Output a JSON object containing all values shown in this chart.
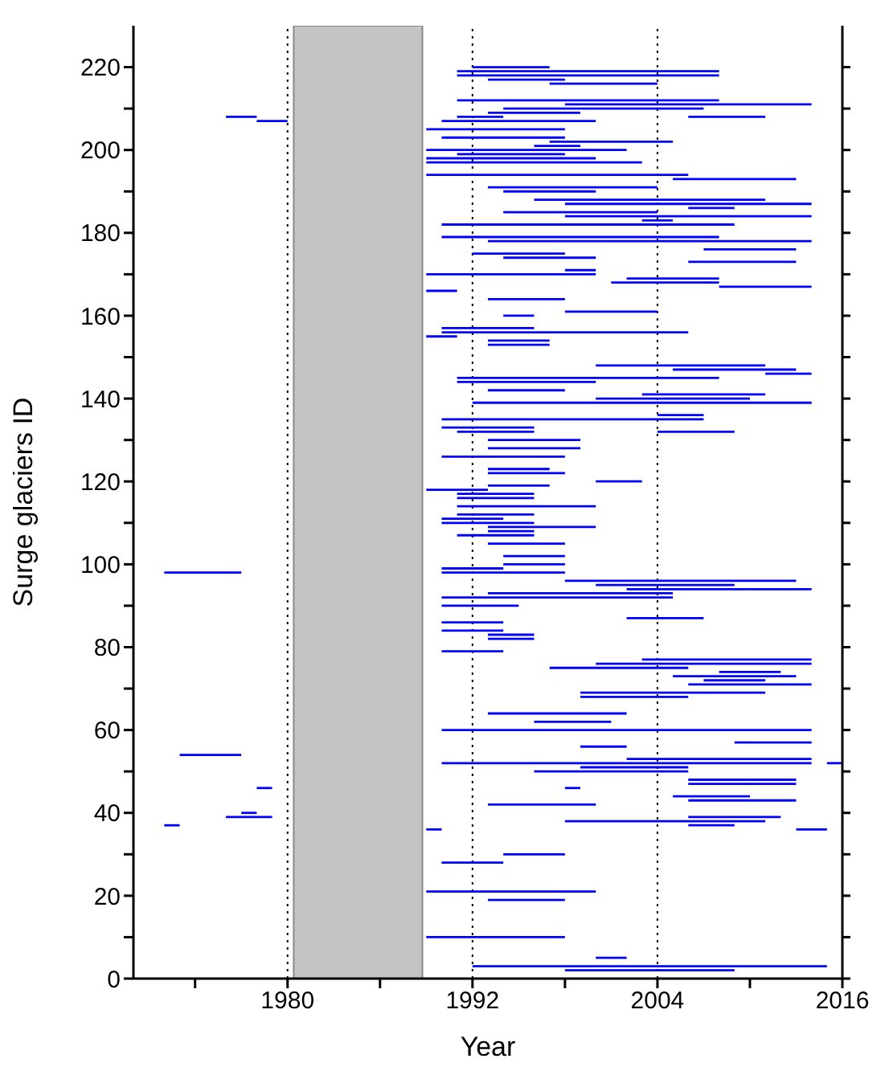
{
  "chart_data": {
    "type": "line",
    "xlabel": "Year",
    "ylabel": "Surge glaciers ID",
    "color": "#0000ff",
    "grid": false,
    "line_style": "solid",
    "xlim": [
      1970,
      2016
    ],
    "xticks": [
      {
        "value": 1974,
        "label": null
      },
      1980,
      {
        "value": 1986,
        "label": null
      },
      1992,
      {
        "value": 1998,
        "label": null
      },
      2004,
      {
        "value": 2010,
        "label": null
      },
      2016
    ],
    "ylim": [
      0,
      230
    ],
    "yticks": [
      0,
      {
        "value": 10,
        "label": null
      },
      20,
      {
        "value": 30,
        "label": null
      },
      40,
      {
        "value": 50,
        "label": null
      },
      60,
      {
        "value": 70,
        "label": null
      },
      80,
      {
        "value": 90,
        "label": null
      },
      100,
      {
        "value": 110,
        "label": null
      },
      120,
      {
        "value": 130,
        "label": null
      },
      140,
      {
        "value": 150,
        "label": null
      },
      160,
      {
        "value": 170,
        "label": null
      },
      180,
      {
        "value": 190,
        "label": null
      },
      200,
      {
        "value": 210,
        "label": null
      },
      220
    ],
    "ref_lines": [
      {
        "axis": "x",
        "value": 1980,
        "color": "#000000",
        "line_style": "dotted"
      },
      {
        "axis": "x",
        "value": 1992,
        "color": "#000000",
        "line_style": "dotted"
      },
      {
        "axis": "x",
        "value": 2004,
        "color": "#000000",
        "line_style": "dotted"
      }
    ],
    "bands": [
      {
        "axis": "x",
        "from": 1980.4,
        "to": 1988.75,
        "color": "#c4c4c4"
      }
    ],
    "series": [
      {
        "x": [
          1992,
          1997
        ],
        "values": [
          220,
          220
        ]
      },
      {
        "x": [
          1991,
          2008
        ],
        "values": [
          219,
          219
        ]
      },
      {
        "x": [
          1991,
          2008
        ],
        "values": [
          218,
          218
        ]
      },
      {
        "x": [
          1993,
          1998
        ],
        "values": [
          217,
          217
        ]
      },
      {
        "x": [
          1997,
          2004
        ],
        "values": [
          216,
          216
        ]
      },
      {
        "x": [
          1991,
          2008
        ],
        "values": [
          212,
          212
        ]
      },
      {
        "x": [
          1998,
          2014
        ],
        "values": [
          211,
          211
        ]
      },
      {
        "x": [
          1994,
          2007
        ],
        "values": [
          210,
          210
        ]
      },
      {
        "x": [
          1993,
          1999
        ],
        "values": [
          209,
          209
        ]
      },
      {
        "x": [
          1976,
          1978
        ],
        "values": [
          208,
          208
        ]
      },
      {
        "x": [
          1991,
          1994
        ],
        "values": [
          208,
          208
        ]
      },
      {
        "x": [
          2006,
          2011
        ],
        "values": [
          208,
          208
        ]
      },
      {
        "x": [
          1978,
          1980
        ],
        "values": [
          207,
          207
        ]
      },
      {
        "x": [
          1990,
          2000
        ],
        "values": [
          207,
          207
        ]
      },
      {
        "x": [
          1989,
          1998
        ],
        "values": [
          205,
          205
        ]
      },
      {
        "x": [
          1990,
          1998
        ],
        "values": [
          203,
          203
        ]
      },
      {
        "x": [
          1997,
          2005
        ],
        "values": [
          202,
          202
        ]
      },
      {
        "x": [
          1996,
          1999
        ],
        "values": [
          201,
          201
        ]
      },
      {
        "x": [
          1989,
          2002
        ],
        "values": [
          200,
          200
        ]
      },
      {
        "x": [
          1991,
          1998
        ],
        "values": [
          199,
          199
        ]
      },
      {
        "x": [
          1989,
          2000
        ],
        "values": [
          198,
          198
        ]
      },
      {
        "x": [
          1989,
          2003
        ],
        "values": [
          197,
          197
        ]
      },
      {
        "x": [
          1989,
          2006
        ],
        "values": [
          194,
          194
        ]
      },
      {
        "x": [
          2005,
          2013
        ],
        "values": [
          193,
          193
        ]
      },
      {
        "x": [
          1993,
          2004
        ],
        "values": [
          191,
          191
        ]
      },
      {
        "x": [
          1994,
          2000
        ],
        "values": [
          190,
          190
        ]
      },
      {
        "x": [
          1996,
          2011
        ],
        "values": [
          188,
          188
        ]
      },
      {
        "x": [
          1998,
          2014
        ],
        "values": [
          187,
          187
        ]
      },
      {
        "x": [
          2006,
          2009
        ],
        "values": [
          186,
          186
        ]
      },
      {
        "x": [
          1994,
          2004
        ],
        "values": [
          185,
          185
        ]
      },
      {
        "x": [
          1998,
          2014
        ],
        "values": [
          184,
          184
        ]
      },
      {
        "x": [
          2003,
          2005
        ],
        "values": [
          183,
          183
        ]
      },
      {
        "x": [
          1990,
          2009
        ],
        "values": [
          182,
          182
        ]
      },
      {
        "x": [
          1990,
          2008
        ],
        "values": [
          179,
          179
        ]
      },
      {
        "x": [
          1993,
          2014
        ],
        "values": [
          178,
          178
        ]
      },
      {
        "x": [
          2007,
          2013
        ],
        "values": [
          176,
          176
        ]
      },
      {
        "x": [
          1992,
          1998
        ],
        "values": [
          175,
          175
        ]
      },
      {
        "x": [
          1994,
          2000
        ],
        "values": [
          174,
          174
        ]
      },
      {
        "x": [
          2006,
          2013
        ],
        "values": [
          173,
          173
        ]
      },
      {
        "x": [
          1998,
          2000
        ],
        "values": [
          171,
          171
        ]
      },
      {
        "x": [
          1989,
          2000
        ],
        "values": [
          170,
          170
        ]
      },
      {
        "x": [
          2002,
          2008
        ],
        "values": [
          169,
          169
        ]
      },
      {
        "x": [
          2001,
          2008
        ],
        "values": [
          168,
          168
        ]
      },
      {
        "x": [
          2008,
          2014
        ],
        "values": [
          167,
          167
        ]
      },
      {
        "x": [
          1989,
          1991
        ],
        "values": [
          166,
          166
        ]
      },
      {
        "x": [
          1993,
          1998
        ],
        "values": [
          164,
          164
        ]
      },
      {
        "x": [
          1998,
          2004
        ],
        "values": [
          161,
          161
        ]
      },
      {
        "x": [
          1994,
          1996
        ],
        "values": [
          160,
          160
        ]
      },
      {
        "x": [
          1990,
          1996
        ],
        "values": [
          157,
          157
        ]
      },
      {
        "x": [
          1990,
          2006
        ],
        "values": [
          156,
          156
        ]
      },
      {
        "x": [
          1989,
          1991
        ],
        "values": [
          155,
          155
        ]
      },
      {
        "x": [
          1993,
          1997
        ],
        "values": [
          154,
          154
        ]
      },
      {
        "x": [
          1993,
          1997
        ],
        "values": [
          153,
          153
        ]
      },
      {
        "x": [
          2000,
          2011
        ],
        "values": [
          148,
          148
        ]
      },
      {
        "x": [
          2005,
          2013
        ],
        "values": [
          147,
          147
        ]
      },
      {
        "x": [
          2011,
          2014
        ],
        "values": [
          146,
          146
        ]
      },
      {
        "x": [
          1991,
          2008
        ],
        "values": [
          145,
          145
        ]
      },
      {
        "x": [
          1991,
          2000
        ],
        "values": [
          144,
          144
        ]
      },
      {
        "x": [
          1993,
          1998
        ],
        "values": [
          142,
          142
        ]
      },
      {
        "x": [
          2003,
          2011
        ],
        "values": [
          141,
          141
        ]
      },
      {
        "x": [
          2000,
          2010
        ],
        "values": [
          140,
          140
        ]
      },
      {
        "x": [
          1992,
          2014
        ],
        "values": [
          139,
          139
        ]
      },
      {
        "x": [
          2004,
          2007
        ],
        "values": [
          136,
          136
        ]
      },
      {
        "x": [
          1990,
          2007
        ],
        "values": [
          135,
          135
        ]
      },
      {
        "x": [
          1990,
          1996
        ],
        "values": [
          133,
          133
        ]
      },
      {
        "x": [
          1991,
          1996
        ],
        "values": [
          132,
          132
        ]
      },
      {
        "x": [
          2004,
          2009
        ],
        "values": [
          132,
          132
        ]
      },
      {
        "x": [
          1993,
          1999
        ],
        "values": [
          130,
          130
        ]
      },
      {
        "x": [
          1993,
          1999
        ],
        "values": [
          128,
          128
        ]
      },
      {
        "x": [
          1990,
          1998
        ],
        "values": [
          126,
          126
        ]
      },
      {
        "x": [
          1993,
          1997
        ],
        "values": [
          123,
          123
        ]
      },
      {
        "x": [
          1993,
          1998
        ],
        "values": [
          122,
          122
        ]
      },
      {
        "x": [
          2000,
          2003
        ],
        "values": [
          120,
          120
        ]
      },
      {
        "x": [
          1993,
          1997
        ],
        "values": [
          119,
          119
        ]
      },
      {
        "x": [
          1989,
          1993
        ],
        "values": [
          118,
          118
        ]
      },
      {
        "x": [
          1991,
          1996
        ],
        "values": [
          117,
          117
        ]
      },
      {
        "x": [
          1991,
          1996
        ],
        "values": [
          116,
          116
        ]
      },
      {
        "x": [
          1991,
          2000
        ],
        "values": [
          114,
          114
        ]
      },
      {
        "x": [
          1991,
          1996
        ],
        "values": [
          112,
          112
        ]
      },
      {
        "x": [
          1990,
          1994
        ],
        "values": [
          111,
          111
        ]
      },
      {
        "x": [
          1990,
          1996
        ],
        "values": [
          110,
          110
        ]
      },
      {
        "x": [
          1993,
          2000
        ],
        "values": [
          109,
          109
        ]
      },
      {
        "x": [
          1993,
          1996
        ],
        "values": [
          108,
          108
        ]
      },
      {
        "x": [
          1991,
          1996
        ],
        "values": [
          107,
          107
        ]
      },
      {
        "x": [
          1993,
          1998
        ],
        "values": [
          105,
          105
        ]
      },
      {
        "x": [
          1994,
          1998
        ],
        "values": [
          102,
          102
        ]
      },
      {
        "x": [
          1994,
          1998
        ],
        "values": [
          100,
          100
        ]
      },
      {
        "x": [
          1990,
          1994
        ],
        "values": [
          99,
          99
        ]
      },
      {
        "x": [
          1972,
          1977
        ],
        "values": [
          98,
          98
        ]
      },
      {
        "x": [
          1990,
          1998
        ],
        "values": [
          98,
          98
        ]
      },
      {
        "x": [
          1998,
          2013
        ],
        "values": [
          96,
          96
        ]
      },
      {
        "x": [
          2000,
          2009
        ],
        "values": [
          95,
          95
        ]
      },
      {
        "x": [
          2002,
          2014
        ],
        "values": [
          94,
          94
        ]
      },
      {
        "x": [
          1993,
          2005
        ],
        "values": [
          93,
          93
        ]
      },
      {
        "x": [
          1990,
          2005
        ],
        "values": [
          92,
          92
        ]
      },
      {
        "x": [
          1990,
          1995
        ],
        "values": [
          90,
          90
        ]
      },
      {
        "x": [
          2002,
          2007
        ],
        "values": [
          87,
          87
        ]
      },
      {
        "x": [
          1990,
          1994
        ],
        "values": [
          86,
          86
        ]
      },
      {
        "x": [
          1990,
          1994
        ],
        "values": [
          84,
          84
        ]
      },
      {
        "x": [
          1993,
          1996
        ],
        "values": [
          83,
          83
        ]
      },
      {
        "x": [
          1993,
          1996
        ],
        "values": [
          82,
          82
        ]
      },
      {
        "x": [
          1990,
          1994
        ],
        "values": [
          79,
          79
        ]
      },
      {
        "x": [
          2003,
          2014
        ],
        "values": [
          77,
          77
        ]
      },
      {
        "x": [
          2000,
          2014
        ],
        "values": [
          76,
          76
        ]
      },
      {
        "x": [
          1997,
          2006
        ],
        "values": [
          75,
          75
        ]
      },
      {
        "x": [
          2008,
          2012
        ],
        "values": [
          74,
          74
        ]
      },
      {
        "x": [
          2005,
          2013
        ],
        "values": [
          73,
          73
        ]
      },
      {
        "x": [
          2007,
          2011
        ],
        "values": [
          72,
          72
        ]
      },
      {
        "x": [
          2006,
          2014
        ],
        "values": [
          71,
          71
        ]
      },
      {
        "x": [
          1999,
          2011
        ],
        "values": [
          69,
          69
        ]
      },
      {
        "x": [
          1999,
          2006
        ],
        "values": [
          68,
          68
        ]
      },
      {
        "x": [
          1993,
          2002
        ],
        "values": [
          64,
          64
        ]
      },
      {
        "x": [
          1996,
          2001
        ],
        "values": [
          62,
          62
        ]
      },
      {
        "x": [
          1990,
          2014
        ],
        "values": [
          60,
          60
        ]
      },
      {
        "x": [
          2009,
          2014
        ],
        "values": [
          57,
          57
        ]
      },
      {
        "x": [
          1999,
          2002
        ],
        "values": [
          56,
          56
        ]
      },
      {
        "x": [
          1973,
          1977
        ],
        "values": [
          54,
          54
        ]
      },
      {
        "x": [
          2002,
          2014
        ],
        "values": [
          53,
          53
        ]
      },
      {
        "x": [
          1990,
          2014
        ],
        "values": [
          52,
          52
        ]
      },
      {
        "x": [
          2015,
          2016
        ],
        "values": [
          52,
          52
        ]
      },
      {
        "x": [
          1999,
          2006
        ],
        "values": [
          51,
          51
        ]
      },
      {
        "x": [
          1996,
          2006
        ],
        "values": [
          50,
          50
        ]
      },
      {
        "x": [
          2006,
          2013
        ],
        "values": [
          48,
          48
        ]
      },
      {
        "x": [
          2006,
          2013
        ],
        "values": [
          47,
          47
        ]
      },
      {
        "x": [
          1978,
          1979
        ],
        "values": [
          46,
          46
        ]
      },
      {
        "x": [
          1998,
          1999
        ],
        "values": [
          46,
          46
        ]
      },
      {
        "x": [
          2005,
          2010
        ],
        "values": [
          44,
          44
        ]
      },
      {
        "x": [
          2006,
          2013
        ],
        "values": [
          43,
          43
        ]
      },
      {
        "x": [
          1993,
          2000
        ],
        "values": [
          42,
          42
        ]
      },
      {
        "x": [
          1977,
          1978
        ],
        "values": [
          40,
          40
        ]
      },
      {
        "x": [
          1976,
          1979
        ],
        "values": [
          39,
          39
        ]
      },
      {
        "x": [
          2006,
          2012
        ],
        "values": [
          39,
          39
        ]
      },
      {
        "x": [
          1998,
          2011
        ],
        "values": [
          38,
          38
        ]
      },
      {
        "x": [
          1972,
          1973
        ],
        "values": [
          37,
          37
        ]
      },
      {
        "x": [
          2006,
          2009
        ],
        "values": [
          37,
          37
        ]
      },
      {
        "x": [
          1989,
          1990
        ],
        "values": [
          36,
          36
        ]
      },
      {
        "x": [
          2013,
          2015
        ],
        "values": [
          36,
          36
        ]
      },
      {
        "x": [
          1994,
          1998
        ],
        "values": [
          30,
          30
        ]
      },
      {
        "x": [
          1990,
          1994
        ],
        "values": [
          28,
          28
        ]
      },
      {
        "x": [
          1989,
          2000
        ],
        "values": [
          21,
          21
        ]
      },
      {
        "x": [
          1993,
          1998
        ],
        "values": [
          19,
          19
        ]
      },
      {
        "x": [
          1989,
          1998
        ],
        "values": [
          10,
          10
        ]
      },
      {
        "x": [
          2000,
          2002
        ],
        "values": [
          5,
          5
        ]
      },
      {
        "x": [
          1992,
          2015
        ],
        "values": [
          3,
          3
        ]
      },
      {
        "x": [
          1998,
          2009
        ],
        "values": [
          2,
          2
        ]
      }
    ]
  }
}
